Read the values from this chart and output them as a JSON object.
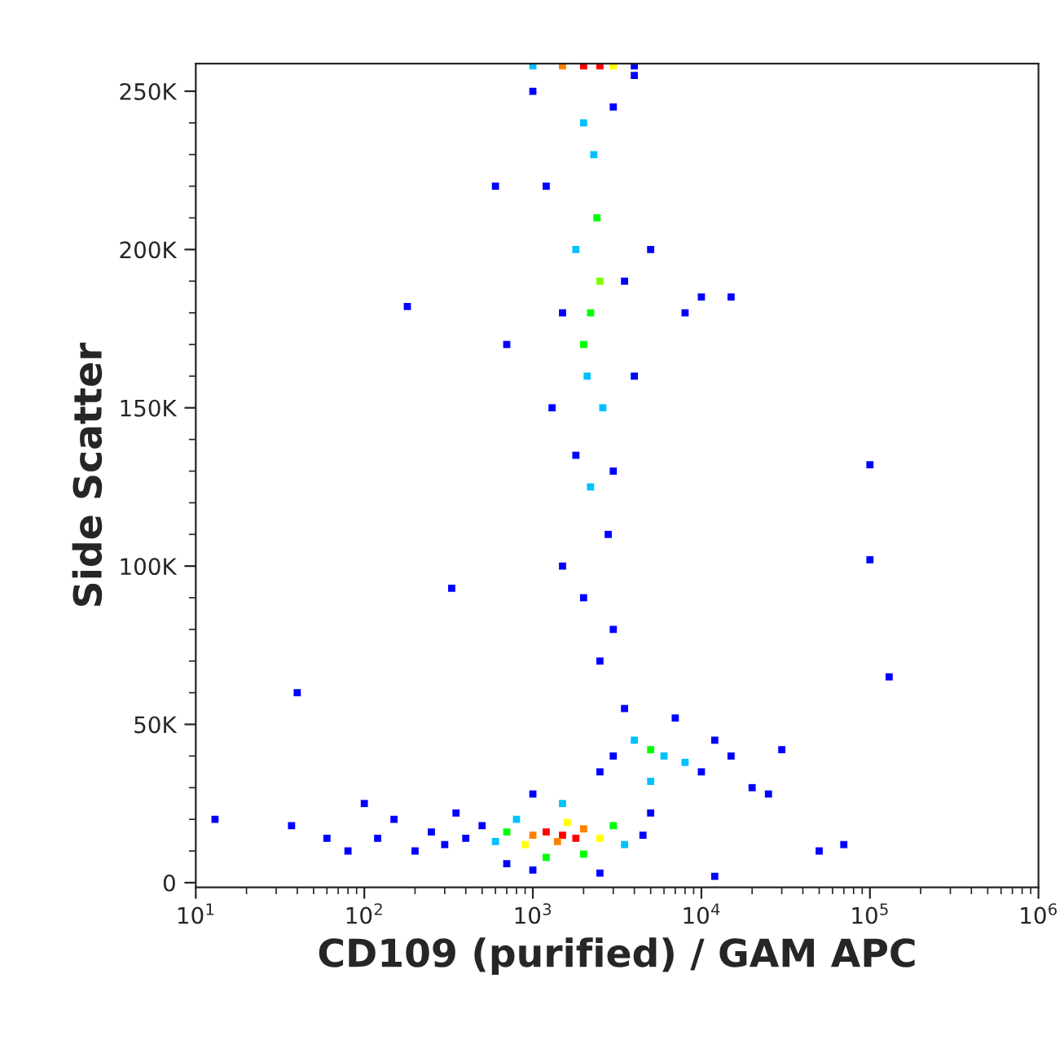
{
  "chart_data": {
    "type": "scatter",
    "xlabel": "CD109 (purified) / GAM APC",
    "ylabel": "Side Scatter",
    "log": "x",
    "marker": "square",
    "grid": false,
    "legend": false,
    "xlim": [
      10,
      1000000
    ],
    "ylim": [
      -1500,
      258700
    ],
    "xticks": [
      {
        "value": 10,
        "label": "10$^{1}$"
      },
      {
        "value": 100,
        "label": "10$^{2}$"
      },
      {
        "value": 1000,
        "label": "10$^{3}$"
      },
      {
        "value": 10000,
        "label": "10$^{4}$"
      },
      {
        "value": 100000,
        "label": "10$^{5}$"
      },
      {
        "value": 1000000,
        "label": "10$^{6}$"
      }
    ],
    "yticks": [
      0,
      {
        "value": 50000,
        "label": "50K"
      },
      {
        "value": 100000,
        "label": "100K"
      },
      {
        "value": 150000,
        "label": "150K"
      },
      {
        "value": 200000,
        "label": "200K"
      },
      {
        "value": 250000,
        "label": "250K"
      }
    ],
    "x": [
      1500,
      1200,
      1800,
      1400,
      2000,
      1000,
      1600,
      900,
      2500,
      700,
      3000,
      1200,
      2000,
      800,
      3500,
      600,
      1500,
      500,
      400,
      300,
      250,
      200,
      4500,
      5000,
      1000,
      2500,
      350,
      1000,
      700,
      150,
      120,
      12000,
      13,
      37,
      60,
      80,
      100,
      40,
      180,
      330,
      5000,
      6000,
      4000,
      8000,
      3000,
      10000,
      12000,
      7000,
      15000,
      20000,
      25000,
      3500,
      2500,
      30000,
      5000,
      2500,
      2000,
      2800,
      3000,
      1500,
      2200,
      2200,
      2500,
      2000,
      2400,
      2100,
      2600,
      1800,
      2300,
      2000,
      1500,
      3500,
      1300,
      4000,
      1200,
      3000,
      1800,
      3000,
      5000,
      8000,
      700,
      600,
      10000,
      15000,
      1000,
      4000,
      1500,
      2000,
      2500,
      3000,
      1000,
      4000,
      100000,
      100000,
      70000,
      130000,
      50000
    ],
    "values": [
      15000,
      16000,
      14000,
      13000,
      17000,
      15000,
      19000,
      12000,
      14000,
      16000,
      18000,
      8000,
      9000,
      20000,
      12000,
      13000,
      25000,
      18000,
      14000,
      12000,
      16000,
      10000,
      15000,
      22000,
      4000,
      3000,
      22000,
      28000,
      6000,
      20000,
      14000,
      2000,
      20000,
      18000,
      14000,
      10000,
      25000,
      60000,
      182000,
      93000,
      42000,
      40000,
      45000,
      38000,
      40000,
      35000,
      45000,
      52000,
      40000,
      30000,
      28000,
      55000,
      35000,
      42000,
      32000,
      70000,
      90000,
      110000,
      80000,
      100000,
      125000,
      180000,
      190000,
      170000,
      210000,
      160000,
      150000,
      200000,
      230000,
      240000,
      180000,
      190000,
      150000,
      160000,
      220000,
      245000,
      135000,
      130000,
      200000,
      180000,
      170000,
      220000,
      185000,
      185000,
      250000,
      255000,
      258000,
      258000,
      258000,
      258000,
      258000,
      258000,
      132000,
      102000,
      12000,
      65000,
      10000
    ],
    "colors": [
      "#ff0000",
      "#ff0000",
      "#ff0000",
      "#ff8000",
      "#ff8000",
      "#ff8000",
      "#ffff00",
      "#ffff00",
      "#ffff00",
      "#00ff00",
      "#00ff00",
      "#00ff00",
      "#00ff00",
      "#00c0ff",
      "#00c0ff",
      "#00c0ff",
      "#00c0ff",
      "#0000ff",
      "#0000ff",
      "#0000ff",
      "#0000ff",
      "#0000ff",
      "#0000ff",
      "#0000ff",
      "#0000ff",
      "#0000ff",
      "#0000ff",
      "#0000ff",
      "#0000ff",
      "#0000ff",
      "#0000ff",
      "#0000ff",
      "#0000ff",
      "#0000ff",
      "#0000ff",
      "#0000ff",
      "#0000ff",
      "#0000ff",
      "#0000ff",
      "#0000ff",
      "#00ff00",
      "#00c0ff",
      "#00c0ff",
      "#00c0ff",
      "#0000ff",
      "#0000ff",
      "#0000ff",
      "#0000ff",
      "#0000ff",
      "#0000ff",
      "#0000ff",
      "#0000ff",
      "#0000ff",
      "#0000ff",
      "#00c0ff",
      "#0000ff",
      "#0000ff",
      "#0000ff",
      "#0000ff",
      "#0000ff",
      "#00c0ff",
      "#00ff00",
      "#80ff00",
      "#00ff00",
      "#00ff00",
      "#00c0ff",
      "#00c0ff",
      "#00c0ff",
      "#00c0ff",
      "#00c0ff",
      "#0000ff",
      "#0000ff",
      "#0000ff",
      "#0000ff",
      "#0000ff",
      "#0000ff",
      "#0000ff",
      "#0000ff",
      "#0000ff",
      "#0000ff",
      "#0000ff",
      "#0000ff",
      "#0000ff",
      "#0000ff",
      "#0000ff",
      "#0000ff",
      "#ff8000",
      "#ff0000",
      "#ff0000",
      "#ffff00",
      "#00c0ff",
      "#0000ff",
      "#0000ff",
      "#0000ff",
      "#0000ff",
      "#0000ff",
      "#0000ff"
    ]
  }
}
